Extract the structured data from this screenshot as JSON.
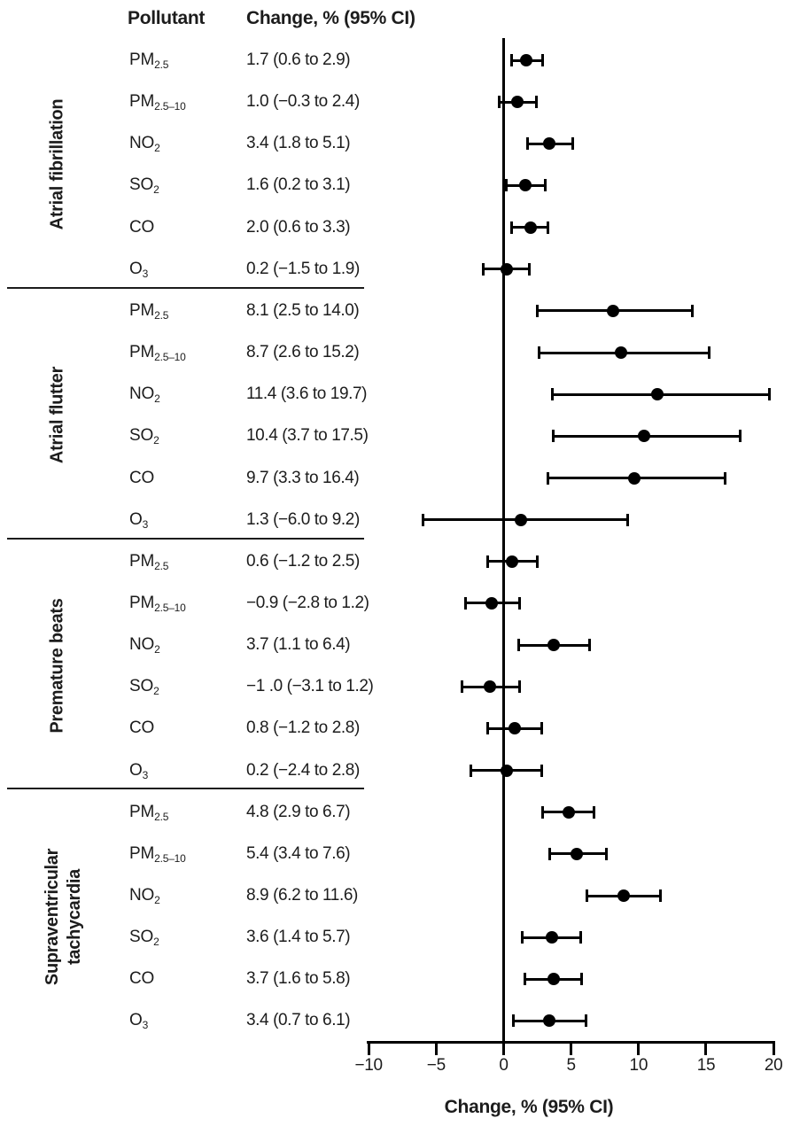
{
  "header": {
    "pollutant": "Pollutant",
    "change": "Change, % (95% CI)"
  },
  "x_axis": {
    "label": "Change, % (95% CI)",
    "tick_labels": [
      "−10",
      "−5",
      "0",
      "5",
      "10",
      "15",
      "20"
    ],
    "tick_values": [
      -10,
      -5,
      0,
      5,
      10,
      15,
      20
    ],
    "range": [
      -10,
      20
    ],
    "reference_line": 0
  },
  "chart_data": {
    "type": "scatter",
    "subtype": "forest-plot",
    "xlabel": "Change, % (95% CI)",
    "xlim": [
      -10,
      20
    ],
    "xticks": [
      -10,
      -5,
      0,
      5,
      10,
      15,
      20
    ],
    "reference_line_x": 0,
    "grid": false,
    "columns": [
      "Pollutant",
      "Change, % (95% CI)"
    ],
    "point_color": "#000000",
    "groups": [
      {
        "outcome": "Atrial fibrillation",
        "outcome_lines": [
          "Atrial fibrillation"
        ],
        "rows": [
          {
            "pollutant_base": "PM",
            "pollutant_sub": "2.5",
            "ci_text": "1.7 (0.6 to 2.9)",
            "estimate": 1.7,
            "ci_low": 0.6,
            "ci_high": 2.9
          },
          {
            "pollutant_base": "PM",
            "pollutant_sub": "2.5–10",
            "ci_text": "1.0 (−0.3 to 2.4)",
            "estimate": 1.0,
            "ci_low": -0.3,
            "ci_high": 2.4
          },
          {
            "pollutant_base": "NO",
            "pollutant_sub": "2",
            "ci_text": "3.4 (1.8 to 5.1)",
            "estimate": 3.4,
            "ci_low": 1.8,
            "ci_high": 5.1
          },
          {
            "pollutant_base": "SO",
            "pollutant_sub": "2",
            "ci_text": "1.6 (0.2 to 3.1)",
            "estimate": 1.6,
            "ci_low": 0.2,
            "ci_high": 3.1
          },
          {
            "pollutant_base": "CO",
            "pollutant_sub": "",
            "ci_text": "2.0 (0.6 to 3.3)",
            "estimate": 2.0,
            "ci_low": 0.6,
            "ci_high": 3.3
          },
          {
            "pollutant_base": "O",
            "pollutant_sub": "3",
            "ci_text": "0.2 (−1.5 to 1.9)",
            "estimate": 0.2,
            "ci_low": -1.5,
            "ci_high": 1.9
          }
        ]
      },
      {
        "outcome": "Atrial flutter",
        "outcome_lines": [
          "Atrial flutter"
        ],
        "rows": [
          {
            "pollutant_base": "PM",
            "pollutant_sub": "2.5",
            "ci_text": "8.1 (2.5 to 14.0)",
            "estimate": 8.1,
            "ci_low": 2.5,
            "ci_high": 14.0
          },
          {
            "pollutant_base": "PM",
            "pollutant_sub": "2.5–10",
            "ci_text": "8.7 (2.6 to 15.2)",
            "estimate": 8.7,
            "ci_low": 2.6,
            "ci_high": 15.2
          },
          {
            "pollutant_base": "NO",
            "pollutant_sub": "2",
            "ci_text": "11.4 (3.6 to 19.7)",
            "estimate": 11.4,
            "ci_low": 3.6,
            "ci_high": 19.7
          },
          {
            "pollutant_base": "SO",
            "pollutant_sub": "2",
            "ci_text": "10.4 (3.7 to 17.5)",
            "estimate": 10.4,
            "ci_low": 3.7,
            "ci_high": 17.5
          },
          {
            "pollutant_base": "CO",
            "pollutant_sub": "",
            "ci_text": "9.7 (3.3 to 16.4)",
            "estimate": 9.7,
            "ci_low": 3.3,
            "ci_high": 16.4
          },
          {
            "pollutant_base": "O",
            "pollutant_sub": "3",
            "ci_text": "1.3 (−6.0 to 9.2)",
            "estimate": 1.3,
            "ci_low": -6.0,
            "ci_high": 9.2
          }
        ]
      },
      {
        "outcome": "Premature beats",
        "outcome_lines": [
          "Premature beats"
        ],
        "rows": [
          {
            "pollutant_base": "PM",
            "pollutant_sub": "2.5",
            "ci_text": "0.6 (−1.2 to 2.5)",
            "estimate": 0.6,
            "ci_low": -1.2,
            "ci_high": 2.5
          },
          {
            "pollutant_base": "PM",
            "pollutant_sub": "2.5–10",
            "ci_text": "−0.9 (−2.8 to 1.2)",
            "estimate": -0.9,
            "ci_low": -2.8,
            "ci_high": 1.2
          },
          {
            "pollutant_base": "NO",
            "pollutant_sub": "2",
            "ci_text": "3.7 (1.1 to 6.4)",
            "estimate": 3.7,
            "ci_low": 1.1,
            "ci_high": 6.4
          },
          {
            "pollutant_base": "SO",
            "pollutant_sub": "2",
            "ci_text": "−1 .0 (−3.1 to 1.2)",
            "estimate": -1.0,
            "ci_low": -3.1,
            "ci_high": 1.2
          },
          {
            "pollutant_base": "CO",
            "pollutant_sub": "",
            "ci_text": "0.8 (−1.2 to 2.8)",
            "estimate": 0.8,
            "ci_low": -1.2,
            "ci_high": 2.8
          },
          {
            "pollutant_base": "O",
            "pollutant_sub": "3",
            "ci_text": "0.2 (−2.4 to 2.8)",
            "estimate": 0.2,
            "ci_low": -2.4,
            "ci_high": 2.8
          }
        ]
      },
      {
        "outcome": "Supraventricular tachycardia",
        "outcome_lines": [
          "Supraventricular",
          "tachycardia"
        ],
        "rows": [
          {
            "pollutant_base": "PM",
            "pollutant_sub": "2.5",
            "ci_text": "4.8 (2.9 to 6.7)",
            "estimate": 4.8,
            "ci_low": 2.9,
            "ci_high": 6.7
          },
          {
            "pollutant_base": "PM",
            "pollutant_sub": "2.5–10",
            "ci_text": "5.4 (3.4 to 7.6)",
            "estimate": 5.4,
            "ci_low": 3.4,
            "ci_high": 7.6
          },
          {
            "pollutant_base": "NO",
            "pollutant_sub": "2",
            "ci_text": "8.9 (6.2 to 11.6)",
            "estimate": 8.9,
            "ci_low": 6.2,
            "ci_high": 11.6
          },
          {
            "pollutant_base": "SO",
            "pollutant_sub": "2",
            "ci_text": "3.6 (1.4 to 5.7)",
            "estimate": 3.6,
            "ci_low": 1.4,
            "ci_high": 5.7
          },
          {
            "pollutant_base": "CO",
            "pollutant_sub": "",
            "ci_text": "3.7 (1.6 to 5.8)",
            "estimate": 3.7,
            "ci_low": 1.6,
            "ci_high": 5.8
          },
          {
            "pollutant_base": "O",
            "pollutant_sub": "3",
            "ci_text": "3.4 (0.7 to 6.1)",
            "estimate": 3.4,
            "ci_low": 0.7,
            "ci_high": 6.1
          }
        ]
      }
    ]
  }
}
